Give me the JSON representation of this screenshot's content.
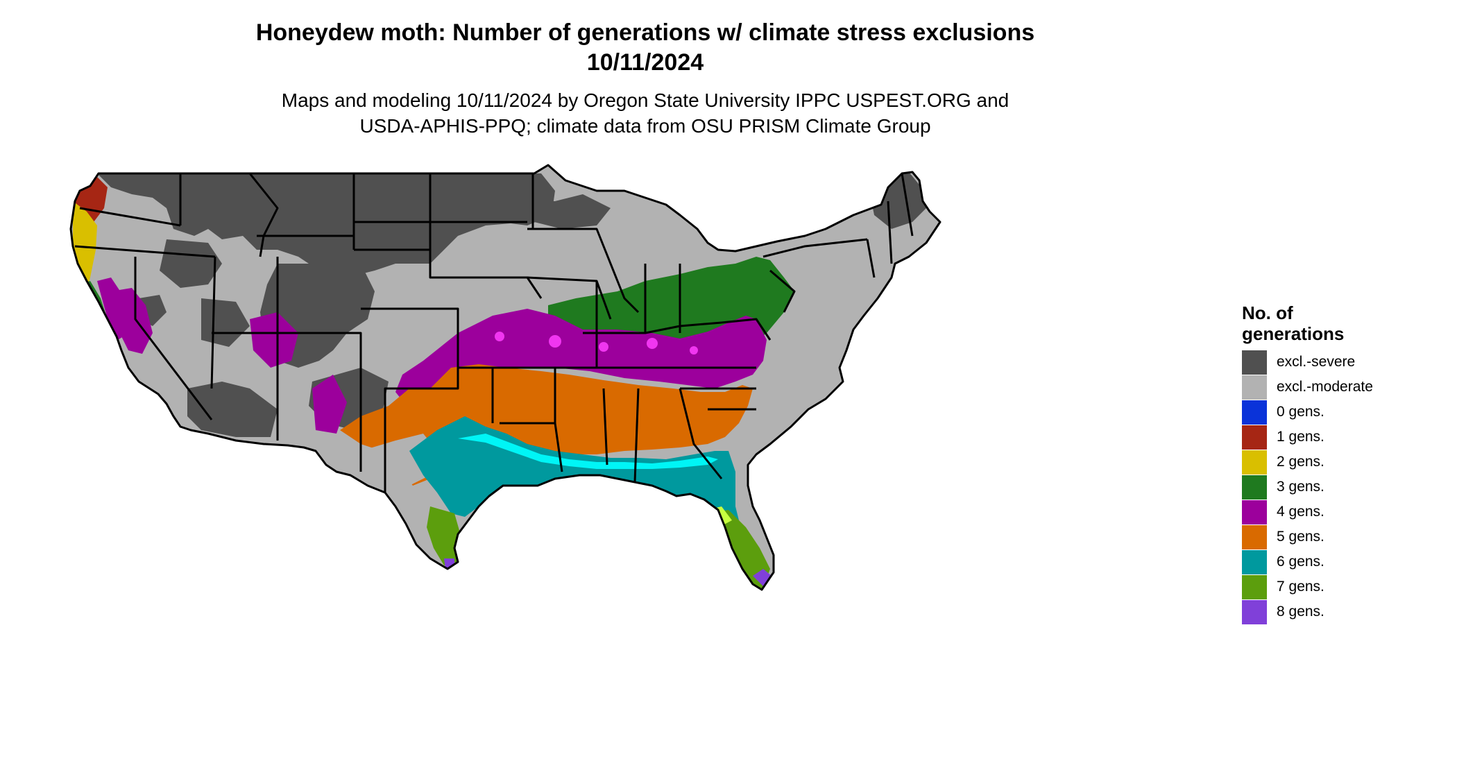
{
  "header": {
    "title_line1": "Honeydew moth: Number of generations w/ climate stress exclusions",
    "title_line2": "10/11/2024",
    "subtitle_line1": "Maps and modeling 10/11/2024 by Oregon State University IPPC USPEST.ORG and",
    "subtitle_line2": "USDA-APHIS-PPQ; climate data from OSU PRISM Climate Group"
  },
  "legend": {
    "title_line1": "No. of",
    "title_line2": "generations",
    "items": [
      {
        "label": "excl.-severe",
        "color": "#505050"
      },
      {
        "label": "excl.-moderate",
        "color": "#b2b2b2"
      },
      {
        "label": "0 gens.",
        "color": "#0a33d9"
      },
      {
        "label": "1 gens.",
        "color": "#a62614"
      },
      {
        "label": "2 gens.",
        "color": "#d9bf00"
      },
      {
        "label": "3 gens.",
        "color": "#1f7a1f"
      },
      {
        "label": "4 gens.",
        "color": "#9c009c"
      },
      {
        "label": "5 gens.",
        "color": "#d96a00"
      },
      {
        "label": "6 gens.",
        "color": "#00999e"
      },
      {
        "label": "7 gens.",
        "color": "#5c9e0d"
      },
      {
        "label": "8 gens.",
        "color": "#8040d9"
      }
    ]
  },
  "map": {
    "region": "contiguous-united-states",
    "state_border_color": "#000000",
    "accent_colors": {
      "highlight_magenta": "#ff40ff",
      "highlight_cyan": "#00ffff",
      "highlight_lime": "#c8ff40"
    }
  }
}
